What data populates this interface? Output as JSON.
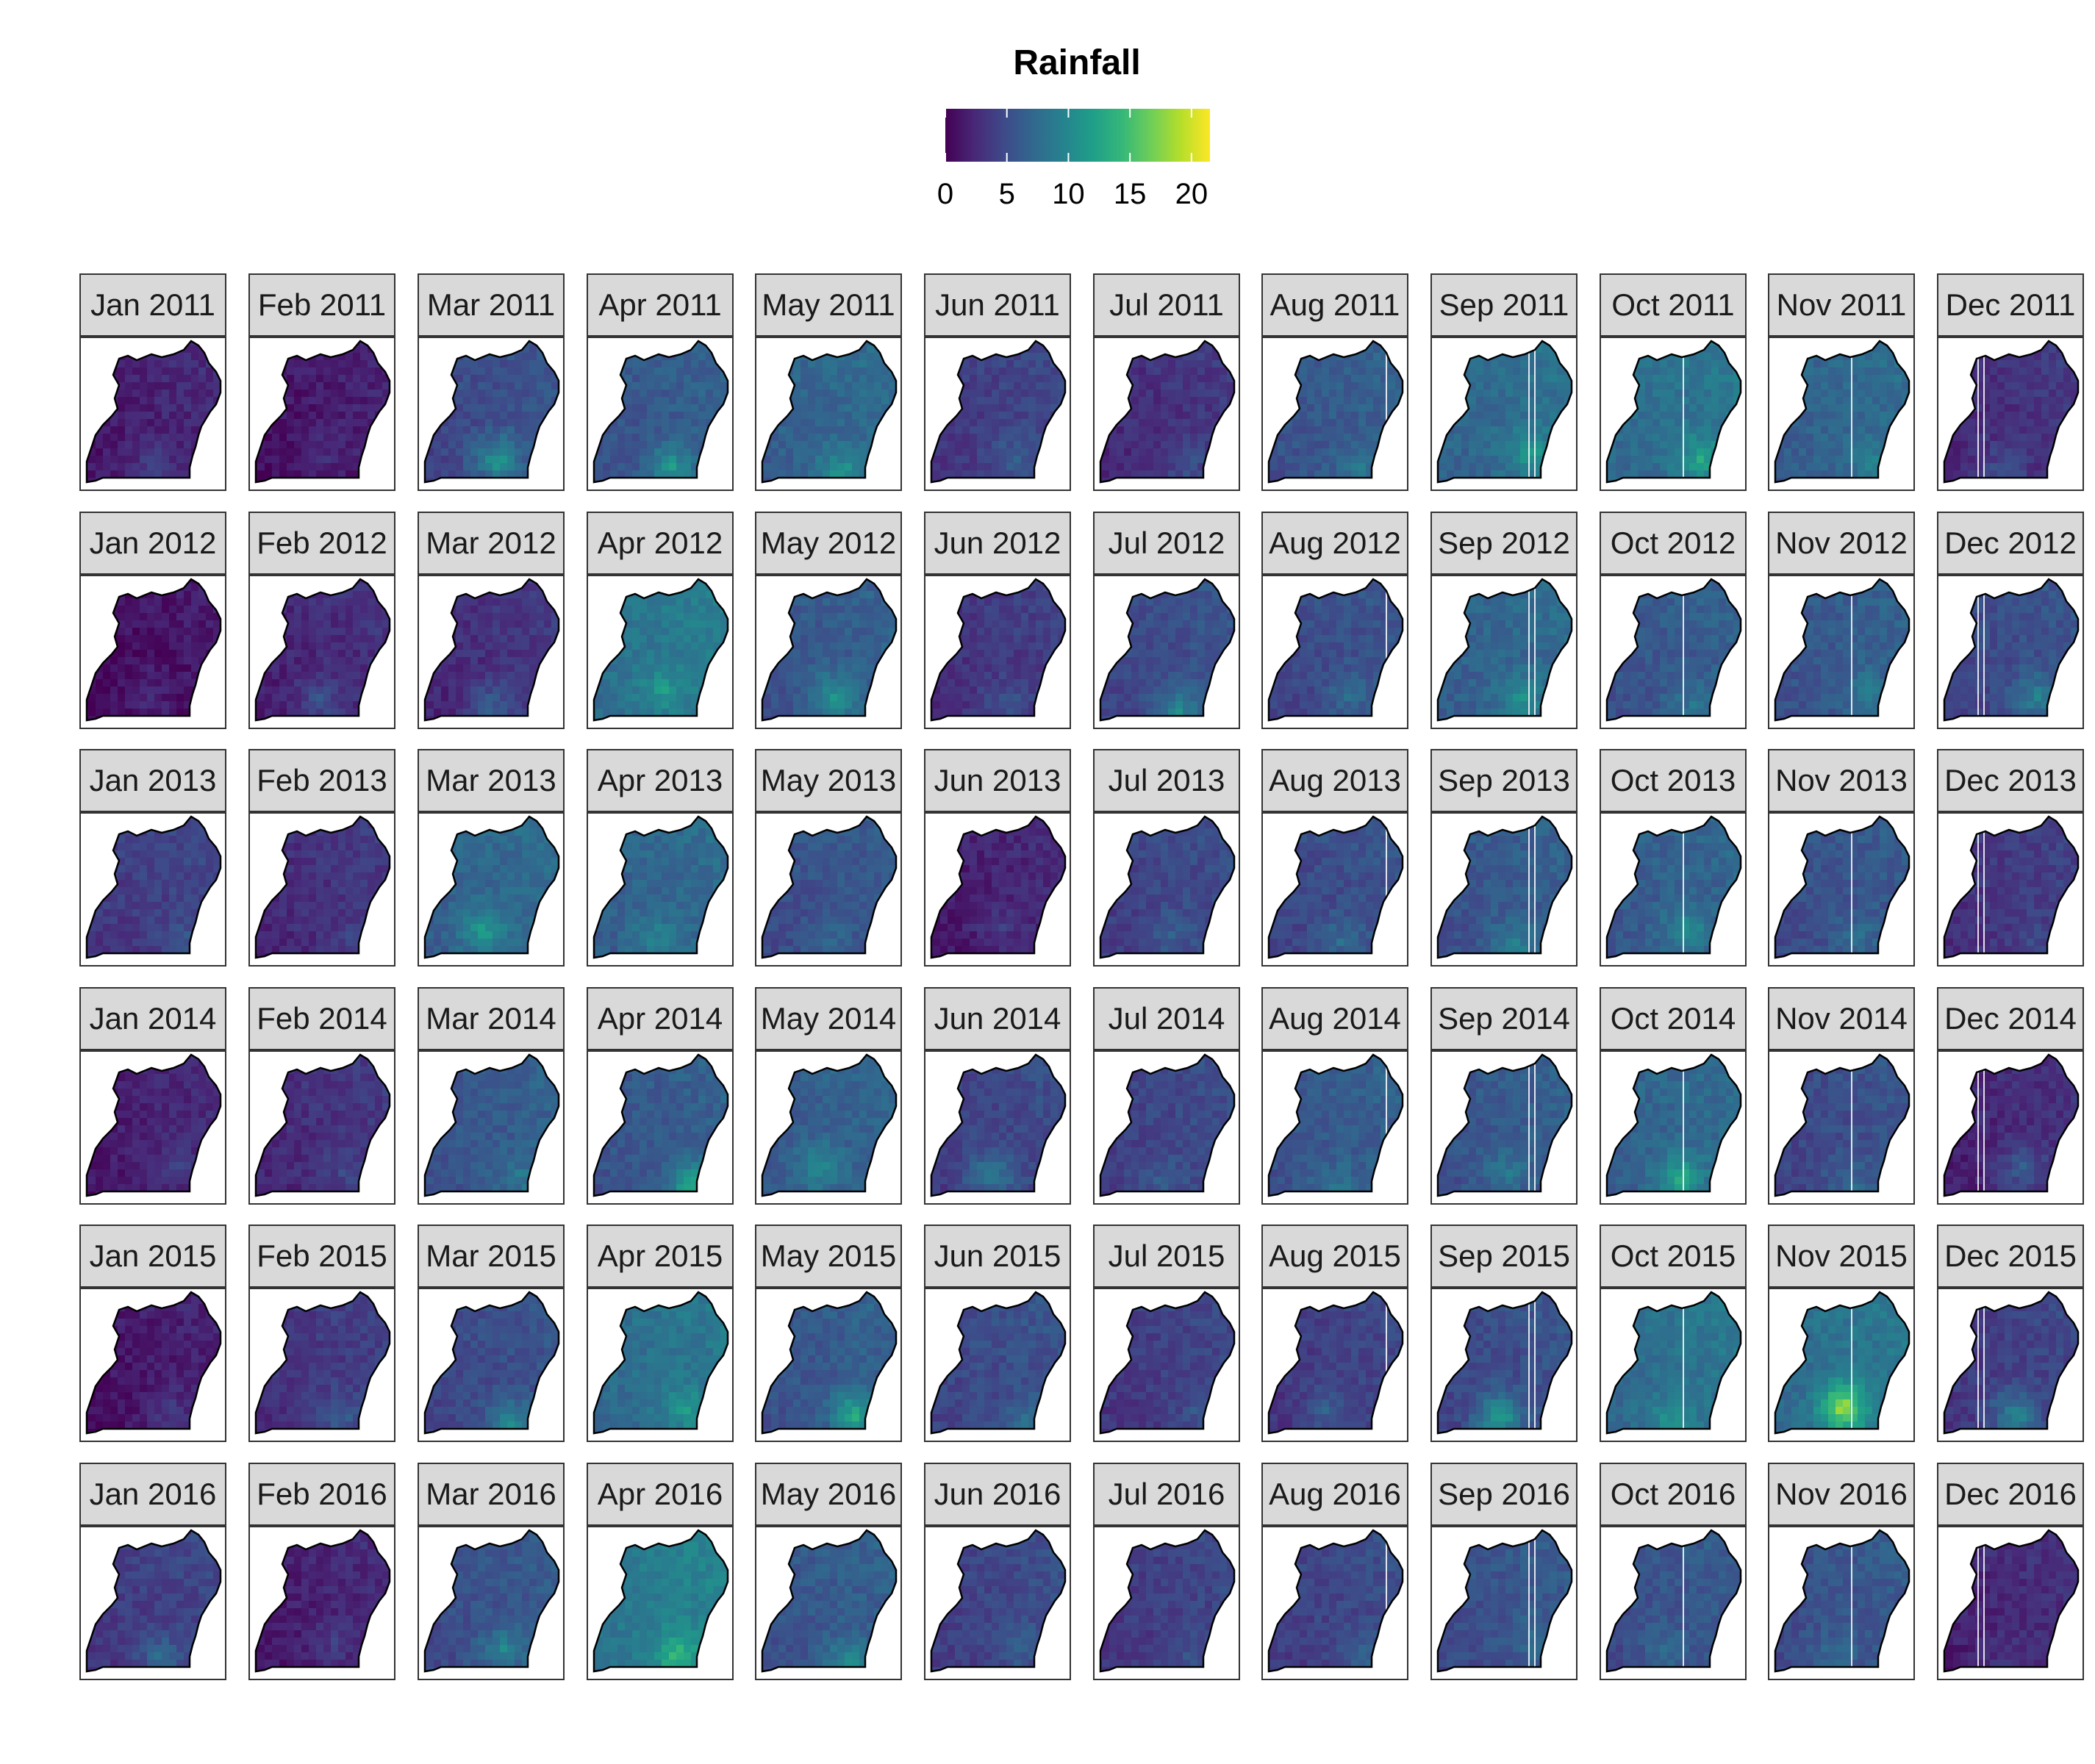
{
  "legend": {
    "title": "Rainfall",
    "ticks": [
      0,
      5,
      10,
      15,
      20
    ],
    "range": [
      0,
      21.5
    ],
    "colormap": [
      "#440154",
      "#482878",
      "#3e4a89",
      "#31688e",
      "#26828e",
      "#1f9e89",
      "#35b779",
      "#6ece58",
      "#b5de2b",
      "#fde725"
    ]
  },
  "panels": [
    {
      "label": "Jan 2011",
      "mean": 2.0,
      "hotspot": 5,
      "bands": 0
    },
    {
      "label": "Feb 2011",
      "mean": 1.5,
      "hotspot": 3,
      "bands": 0
    },
    {
      "label": "Mar 2011",
      "mean": 5.0,
      "hotspot": 12,
      "bands": 0
    },
    {
      "label": "Apr 2011",
      "mean": 6.0,
      "hotspot": 12,
      "bands": 0
    },
    {
      "label": "May 2011",
      "mean": 7.0,
      "hotspot": 12,
      "bands": 0
    },
    {
      "label": "Jun 2011",
      "mean": 4.0,
      "hotspot": 7,
      "bands": 0
    },
    {
      "label": "Jul 2011",
      "mean": 3.0,
      "hotspot": 6,
      "bands": 0
    },
    {
      "label": "Aug 2011",
      "mean": 6.0,
      "hotspot": 9,
      "bands": 1
    },
    {
      "label": "Sep 2011",
      "mean": 7.5,
      "hotspot": 12,
      "bands": 2
    },
    {
      "label": "Oct 2011",
      "mean": 8.0,
      "hotspot": 13,
      "bands": 1
    },
    {
      "label": "Nov 2011",
      "mean": 7.0,
      "hotspot": 10,
      "bands": 1
    },
    {
      "label": "Dec 2011",
      "mean": 3.0,
      "hotspot": 6,
      "bands": 2
    },
    {
      "label": "Jan 2012",
      "mean": 1.0,
      "hotspot": 3,
      "bands": 0
    },
    {
      "label": "Feb 2012",
      "mean": 2.5,
      "hotspot": 6,
      "bands": 0
    },
    {
      "label": "Mar 2012",
      "mean": 3.0,
      "hotspot": 7,
      "bands": 0
    },
    {
      "label": "Apr 2012",
      "mean": 8.5,
      "hotspot": 12,
      "bands": 0
    },
    {
      "label": "May 2012",
      "mean": 6.0,
      "hotspot": 12,
      "bands": 0
    },
    {
      "label": "Jun 2012",
      "mean": 3.5,
      "hotspot": 6,
      "bands": 0
    },
    {
      "label": "Jul 2012",
      "mean": 5.0,
      "hotspot": 11,
      "bands": 0
    },
    {
      "label": "Aug 2012",
      "mean": 5.0,
      "hotspot": 8,
      "bands": 1
    },
    {
      "label": "Sep 2012",
      "mean": 7.0,
      "hotspot": 11,
      "bands": 2
    },
    {
      "label": "Oct 2012",
      "mean": 6.0,
      "hotspot": 9,
      "bands": 1
    },
    {
      "label": "Nov 2012",
      "mean": 6.0,
      "hotspot": 9,
      "bands": 1
    },
    {
      "label": "Dec 2012",
      "mean": 5.0,
      "hotspot": 10,
      "bands": 2
    },
    {
      "label": "Jan 2013",
      "mean": 4.0,
      "hotspot": 6,
      "bands": 0
    },
    {
      "label": "Feb 2013",
      "mean": 3.0,
      "hotspot": 5,
      "bands": 0
    },
    {
      "label": "Mar 2013",
      "mean": 7.0,
      "hotspot": 12,
      "bands": 0
    },
    {
      "label": "Apr 2013",
      "mean": 7.0,
      "hotspot": 10,
      "bands": 0
    },
    {
      "label": "May 2013",
      "mean": 5.5,
      "hotspot": 8,
      "bands": 0
    },
    {
      "label": "Jun 2013",
      "mean": 2.0,
      "hotspot": 4,
      "bands": 0
    },
    {
      "label": "Jul 2013",
      "mean": 4.5,
      "hotspot": 7,
      "bands": 0
    },
    {
      "label": "Aug 2013",
      "mean": 5.0,
      "hotspot": 8,
      "bands": 1
    },
    {
      "label": "Sep 2013",
      "mean": 6.0,
      "hotspot": 10,
      "bands": 2
    },
    {
      "label": "Oct 2013",
      "mean": 6.5,
      "hotspot": 11,
      "bands": 1
    },
    {
      "label": "Nov 2013",
      "mean": 5.5,
      "hotspot": 8,
      "bands": 1
    },
    {
      "label": "Dec 2013",
      "mean": 3.5,
      "hotspot": 5,
      "bands": 2
    },
    {
      "label": "Jan 2014",
      "mean": 2.0,
      "hotspot": 4,
      "bands": 0
    },
    {
      "label": "Feb 2014",
      "mean": 3.0,
      "hotspot": 5,
      "bands": 0
    },
    {
      "label": "Mar 2014",
      "mean": 6.0,
      "hotspot": 9,
      "bands": 0
    },
    {
      "label": "Apr 2014",
      "mean": 6.0,
      "hotspot": 14,
      "bands": 0
    },
    {
      "label": "May 2014",
      "mean": 6.5,
      "hotspot": 11,
      "bands": 0
    },
    {
      "label": "Jun 2014",
      "mean": 4.5,
      "hotspot": 10,
      "bands": 0
    },
    {
      "label": "Jul 2014",
      "mean": 4.5,
      "hotspot": 7,
      "bands": 0
    },
    {
      "label": "Aug 2014",
      "mean": 6.0,
      "hotspot": 9,
      "bands": 1
    },
    {
      "label": "Sep 2014",
      "mean": 6.0,
      "hotspot": 9,
      "bands": 2
    },
    {
      "label": "Oct 2014",
      "mean": 7.0,
      "hotspot": 14,
      "bands": 1
    },
    {
      "label": "Nov 2014",
      "mean": 5.0,
      "hotspot": 8,
      "bands": 1
    },
    {
      "label": "Dec 2014",
      "mean": 2.5,
      "hotspot": 7,
      "bands": 2
    },
    {
      "label": "Jan 2015",
      "mean": 1.5,
      "hotspot": 4,
      "bands": 0
    },
    {
      "label": "Feb 2015",
      "mean": 3.5,
      "hotspot": 7,
      "bands": 0
    },
    {
      "label": "Mar 2015",
      "mean": 5.0,
      "hotspot": 11,
      "bands": 0
    },
    {
      "label": "Apr 2015",
      "mean": 8.0,
      "hotspot": 12,
      "bands": 0
    },
    {
      "label": "May 2015",
      "mean": 6.0,
      "hotspot": 14,
      "bands": 0
    },
    {
      "label": "Jun 2015",
      "mean": 5.0,
      "hotspot": 8,
      "bands": 0
    },
    {
      "label": "Jul 2015",
      "mean": 4.0,
      "hotspot": 6,
      "bands": 0
    },
    {
      "label": "Aug 2015",
      "mean": 4.0,
      "hotspot": 7,
      "bands": 1
    },
    {
      "label": "Sep 2015",
      "mean": 5.0,
      "hotspot": 13,
      "bands": 2
    },
    {
      "label": "Oct 2015",
      "mean": 8.0,
      "hotspot": 12,
      "bands": 1
    },
    {
      "label": "Nov 2015",
      "mean": 8.0,
      "hotspot": 20,
      "bands": 1
    },
    {
      "label": "Dec 2015",
      "mean": 4.0,
      "hotspot": 11,
      "bands": 2
    },
    {
      "label": "Jan 2016",
      "mean": 4.0,
      "hotspot": 8,
      "bands": 0
    },
    {
      "label": "Feb 2016",
      "mean": 2.0,
      "hotspot": 4,
      "bands": 0
    },
    {
      "label": "Mar 2016",
      "mean": 5.5,
      "hotspot": 10,
      "bands": 0
    },
    {
      "label": "Apr 2016",
      "mean": 9.0,
      "hotspot": 15,
      "bands": 0
    },
    {
      "label": "May 2016",
      "mean": 6.0,
      "hotspot": 11,
      "bands": 0
    },
    {
      "label": "Jun 2016",
      "mean": 4.5,
      "hotspot": 7,
      "bands": 0
    },
    {
      "label": "Jul 2016",
      "mean": 4.0,
      "hotspot": 6,
      "bands": 0
    },
    {
      "label": "Aug 2016",
      "mean": 4.5,
      "hotspot": 7,
      "bands": 1
    },
    {
      "label": "Sep 2016",
      "mean": 5.5,
      "hotspot": 8,
      "bands": 2
    },
    {
      "label": "Oct 2016",
      "mean": 5.5,
      "hotspot": 8,
      "bands": 1
    },
    {
      "label": "Nov 2016",
      "mean": 5.5,
      "hotspot": 8,
      "bands": 1
    },
    {
      "label": "Dec 2016",
      "mean": 2.5,
      "hotspot": 4,
      "bands": 2
    }
  ]
}
